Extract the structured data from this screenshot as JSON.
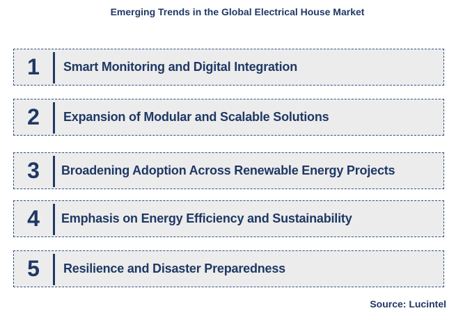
{
  "title": "Emerging Trends in the Global Electrical House Market",
  "trends": [
    {
      "number": "1",
      "label": "Smart Monitoring and Digital Integration"
    },
    {
      "number": "2",
      "label": "Expansion of Modular and Scalable Solutions"
    },
    {
      "number": "3",
      "label": "Broadening Adoption Across Renewable Energy Projects"
    },
    {
      "number": "4",
      "label": "Emphasis on Energy Efficiency and Sustainability"
    },
    {
      "number": "5",
      "label": "Resilience and Disaster Preparedness"
    }
  ],
  "source": "Source: Lucintel",
  "colors": {
    "text": "#1f3864",
    "box_fill": "#ececec",
    "border": "#2f4f7f"
  }
}
